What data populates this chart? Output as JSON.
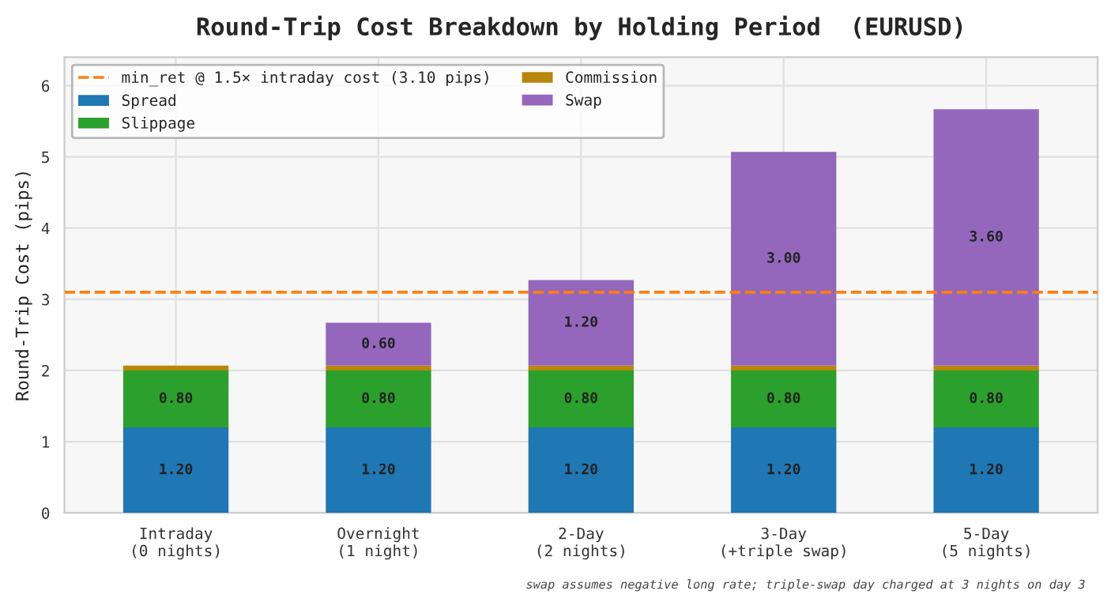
{
  "chart_data": {
    "type": "bar",
    "stacked": true,
    "title": "Round-Trip Cost Breakdown by Holding Period  (EURUSD)",
    "ylabel": "Round-Trip Cost (pips)",
    "categories": [
      "Intraday\n(0 nights)",
      "Overnight\n(1 night)",
      "2-Day\n(2 nights)",
      "3-Day\n(+triple swap)",
      "5-Day\n(5 nights)"
    ],
    "series": [
      {
        "name": "Spread",
        "color": "#1f77b4",
        "values": [
          1.2,
          1.2,
          1.2,
          1.2,
          1.2
        ],
        "value_labels": [
          "1.20",
          "1.20",
          "1.20",
          "1.20",
          "1.20"
        ]
      },
      {
        "name": "Slippage",
        "color": "#2ca02c",
        "values": [
          0.8,
          0.8,
          0.8,
          0.8,
          0.8
        ],
        "value_labels": [
          "0.80",
          "0.80",
          "0.80",
          "0.80",
          "0.80"
        ]
      },
      {
        "name": "Commission",
        "color": "#b8860b",
        "values": [
          0.07,
          0.07,
          0.07,
          0.07,
          0.07
        ]
      },
      {
        "name": "Swap",
        "color": "#9467bd",
        "values": [
          0,
          0.6,
          1.2,
          3.0,
          3.6
        ],
        "value_labels": [
          null,
          "0.60",
          "1.20",
          "3.00",
          "3.60"
        ]
      }
    ],
    "ref_lines": [
      {
        "axis": "y",
        "value": 3.1,
        "label": "min_ret @ 1.5× intraday cost (3.10 pips)",
        "color": "#ff7f0e",
        "line_style": "dashed"
      }
    ],
    "ylim": [
      0,
      6.4
    ],
    "yticks": [
      0,
      1,
      2,
      3,
      4,
      5,
      6
    ],
    "grid": true,
    "legend": "top left",
    "annotations": [
      "swap assumes negative long rate; triple-swap day charged at 3 nights on day 3"
    ]
  }
}
